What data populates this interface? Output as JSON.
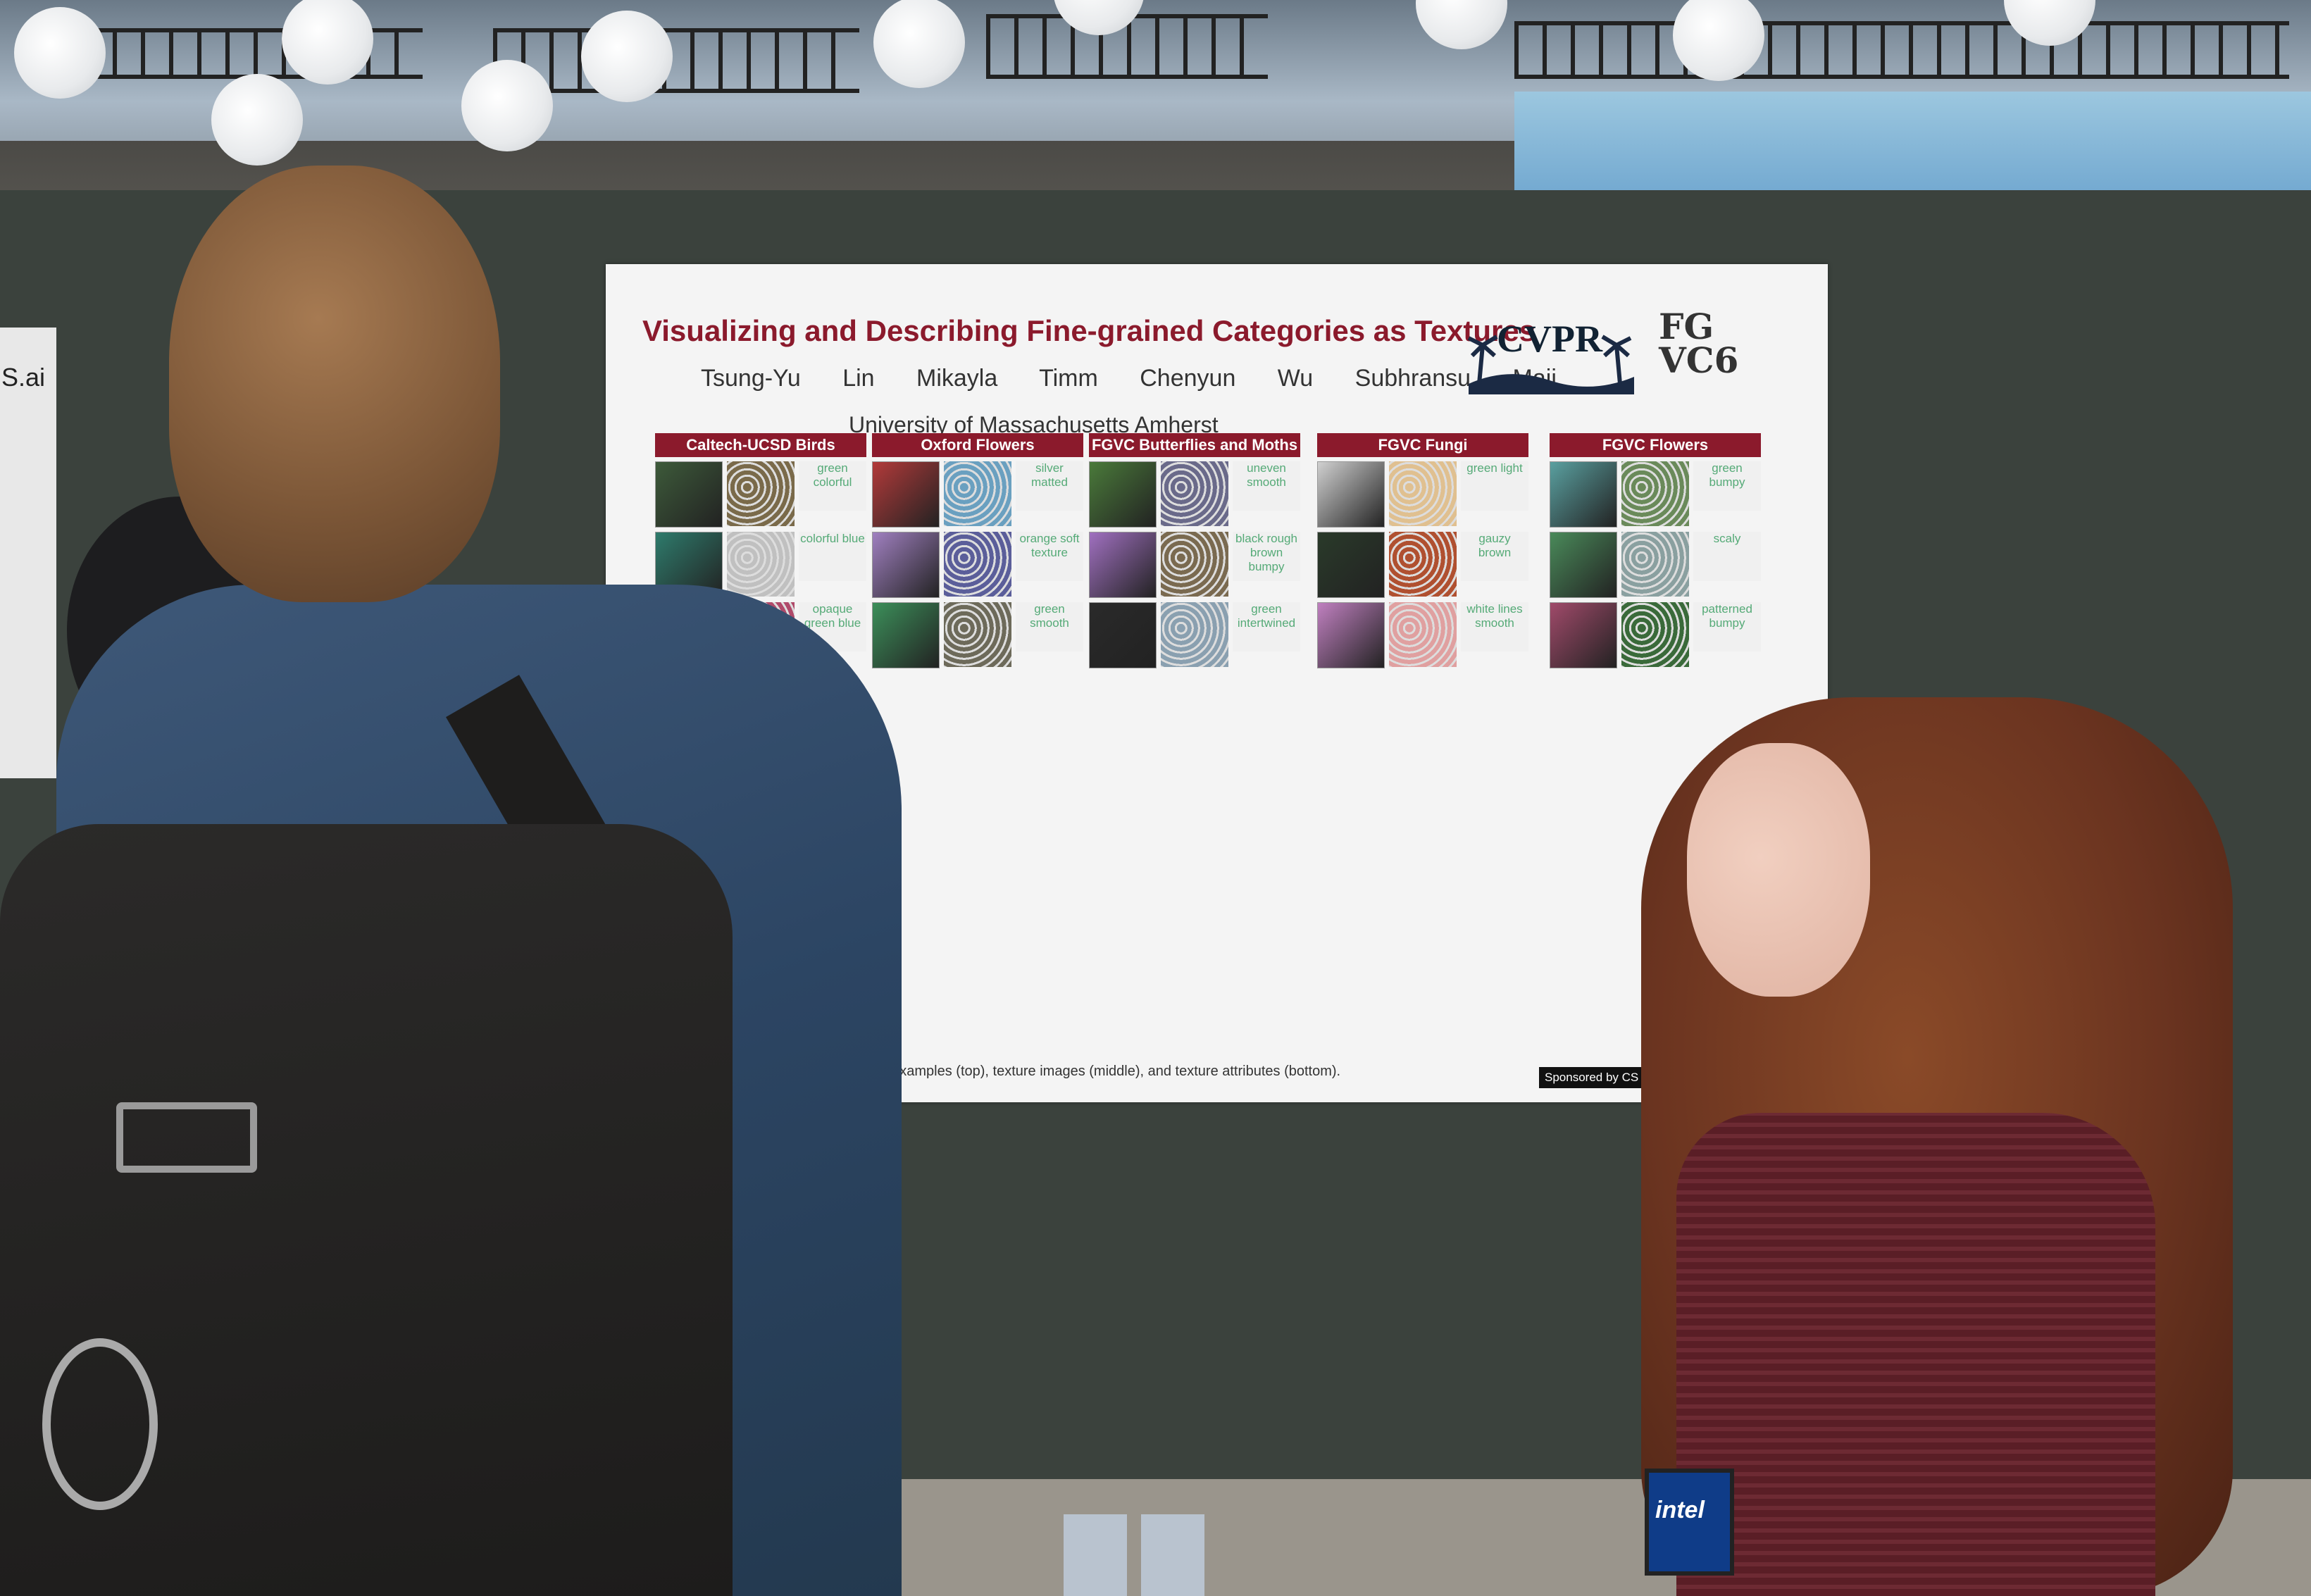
{
  "poster": {
    "title": "Visualizing and Describing Fine-grained Categories as Textures",
    "authors": "Tsung-Yu Lin Mikayla Timm Chenyun Wu Subhransu Maji",
    "affiliation": "University of Massachusetts Amherst",
    "logo_cvpr": "CVPR",
    "logo_fgvc": "FG VC6",
    "columns": [
      {
        "header": "Caltech-UCSD Birds",
        "words": [
          "green colorful",
          "colorful blue",
          "opaque green blue"
        ]
      },
      {
        "header": "Oxford Flowers",
        "words": [
          "silver matted",
          "orange soft texture",
          "green smooth"
        ]
      },
      {
        "header": "FGVC Butterflies and Moths",
        "words": [
          "uneven smooth",
          "black rough brown bumpy",
          "green intertwined"
        ]
      },
      {
        "header": "FGVC Fungi",
        "words": [
          "green light",
          "gauzy brown",
          "white lines smooth"
        ]
      },
      {
        "header": "FGVC Flowers",
        "words": [
          "green bumpy",
          "scaly",
          "patterned bumpy"
        ]
      }
    ],
    "caption": "training examples (top), texture images (middle), and texture attributes (bottom).",
    "sponsor": "Sponsored by CS Women, Women Fo"
  },
  "left_poster_text": "S.ai",
  "badge_text": "intel"
}
